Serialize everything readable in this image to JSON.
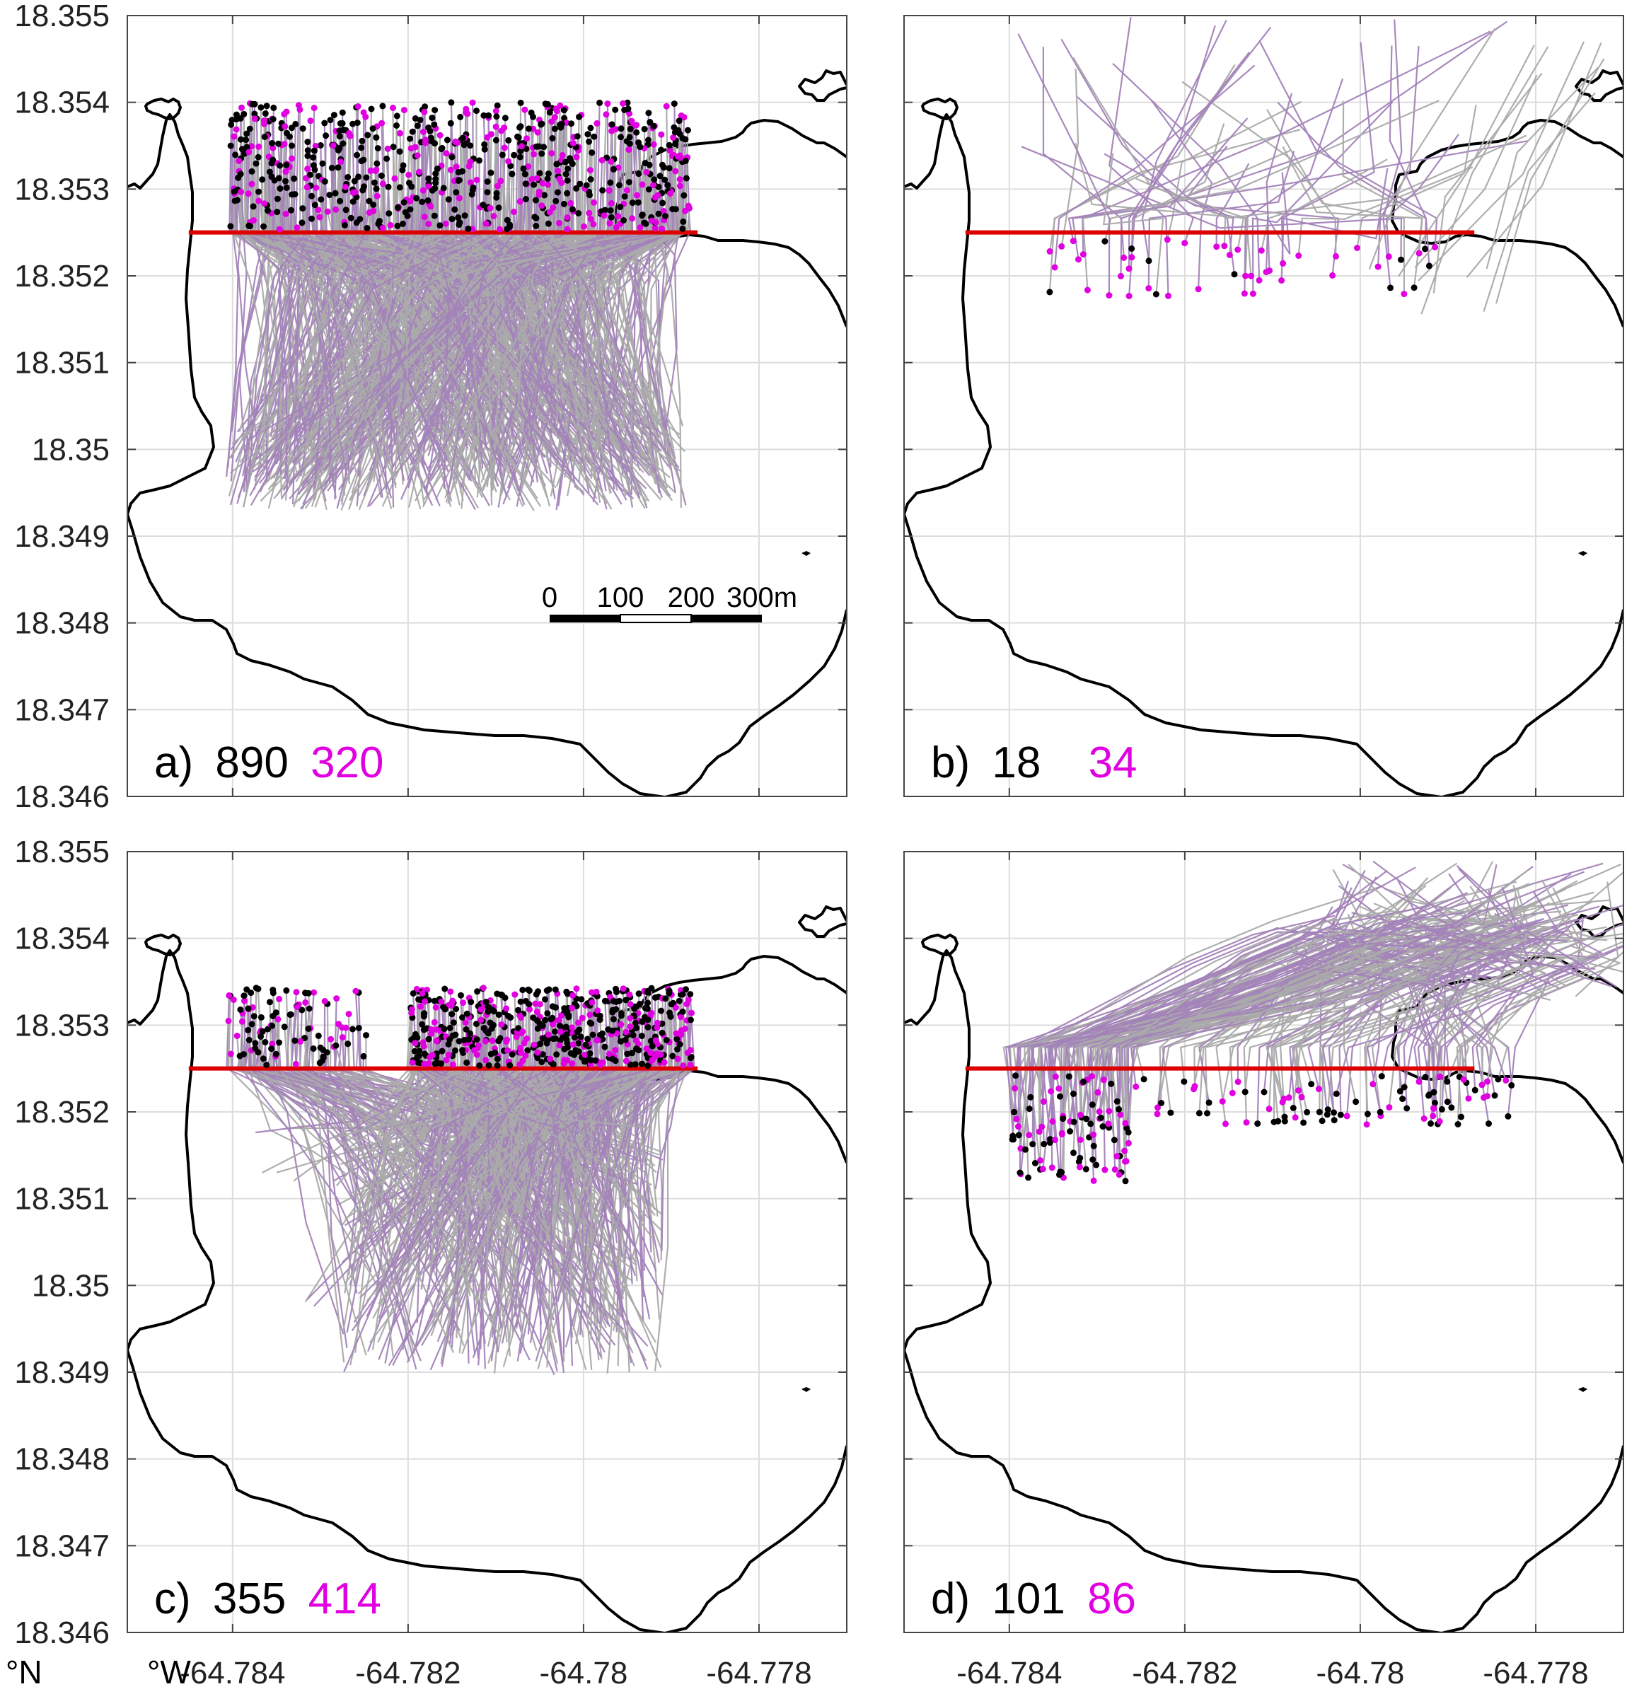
{
  "chart_data": {
    "type": "map-trajectories",
    "shared_axes": {
      "x_ticks": [
        -64.784,
        -64.782,
        -64.78,
        -64.778
      ],
      "x_tick_labels": [
        "-64.784",
        "-64.782",
        "-64.78",
        "-64.778"
      ],
      "y_ticks": [
        18.346,
        18.347,
        18.348,
        18.349,
        18.35,
        18.351,
        18.352,
        18.353,
        18.354,
        18.355
      ],
      "y_tick_labels": [
        "18.346",
        "18.347",
        "18.348",
        "18.349",
        "18.35",
        "18.351",
        "18.352",
        "18.353",
        "18.354",
        "18.355"
      ],
      "xlim": [
        -64.7852,
        -64.777
      ],
      "ylim": [
        18.346,
        18.355
      ],
      "lat_unit": "°N",
      "lon_unit": "°W",
      "grid": true
    },
    "boundary_line": {
      "lat": 18.3525,
      "lon_range": [
        -64.7845,
        -64.7787
      ],
      "color": "#dd0000"
    },
    "scale_bar": {
      "labels": [
        "0",
        "100",
        "200",
        "300m"
      ]
    },
    "panels": [
      {
        "id": "a",
        "label": "a)",
        "count_black": "890",
        "count_magenta": "320",
        "pattern": "offshore"
      },
      {
        "id": "b",
        "label": "b)",
        "count_black": "18",
        "count_magenta": "34",
        "pattern": "onshore-sparse"
      },
      {
        "id": "c",
        "label": "c)",
        "count_black": "355",
        "count_magenta": "414",
        "pattern": "offshore-east"
      },
      {
        "id": "d",
        "label": "d)",
        "count_black": "101",
        "count_magenta": "86",
        "pattern": "onshore"
      }
    ],
    "colors": {
      "track_gray": "#aaaaaa",
      "track_purple": "#a383b9",
      "endpoint_black": "#000000",
      "endpoint_magenta": "#e000e0",
      "coast": "#000000",
      "grid": "#dddddd"
    }
  }
}
